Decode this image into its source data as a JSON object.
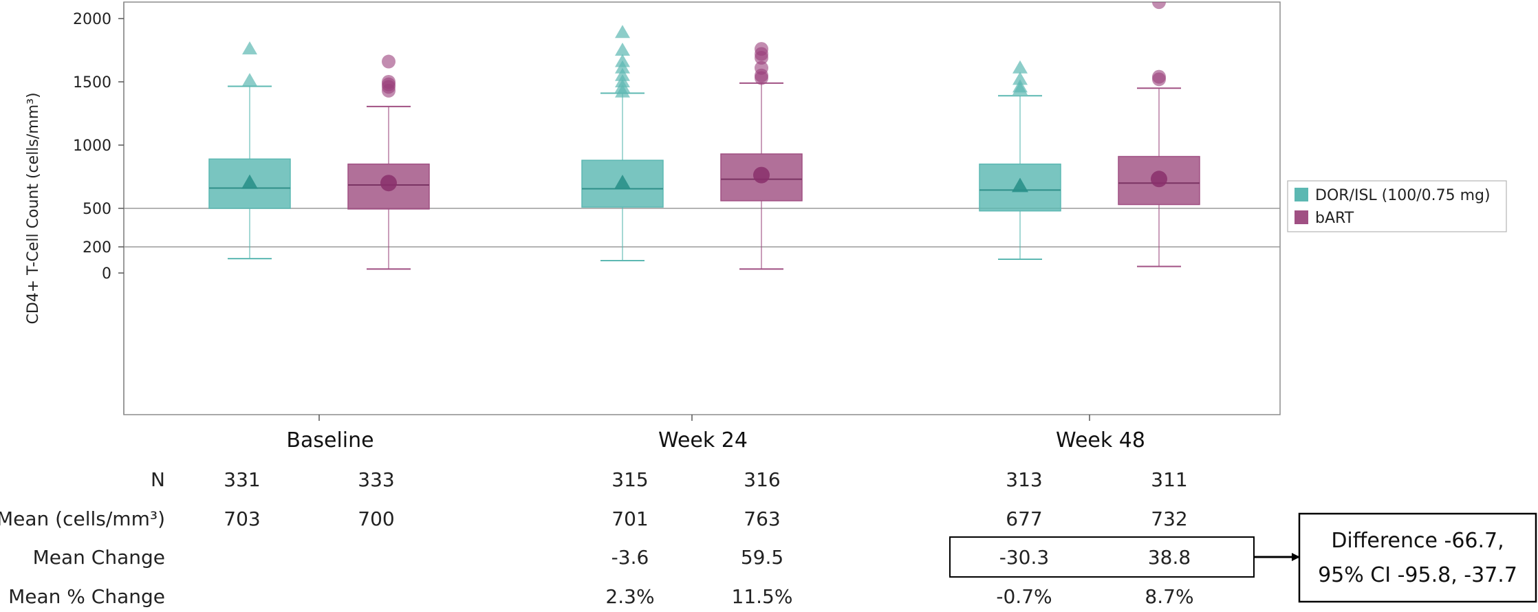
{
  "chart_data": {
    "type": "box",
    "ylabel": "CD4+ T-Cell Count (cells/mm³)",
    "yticks": [
      0,
      200,
      500,
      1000,
      1500,
      2000
    ],
    "categories": [
      "Baseline",
      "Week 24",
      "Week 48"
    ],
    "reference_lines": [
      200,
      500
    ],
    "colors": {
      "DOR/ISL (100/0.75 mg)": "#5cb8b2",
      "bART": "#a05083"
    },
    "legend_position": "right",
    "series": [
      {
        "name": "DOR/ISL (100/0.75 mg)",
        "marker": "triangle",
        "boxes": [
          {
            "category": "Baseline",
            "whisker_low": 110,
            "q1": 500,
            "median": 660,
            "q3": 890,
            "whisker_high": 1465,
            "mean": 703,
            "outliers": [
              1510,
              1760
            ]
          },
          {
            "category": "Week 24",
            "whisker_low": 95,
            "q1": 510,
            "median": 655,
            "q3": 880,
            "whisker_high": 1410,
            "mean": 701,
            "outliers": [
              1420,
              1460,
              1500,
              1550,
              1610,
              1660,
              1750,
              1890
            ]
          },
          {
            "category": "Week 48",
            "whisker_low": 105,
            "q1": 480,
            "median": 645,
            "q3": 850,
            "whisker_high": 1390,
            "mean": 677,
            "outliers": [
              1440,
              1460,
              1520,
              1610
            ]
          }
        ]
      },
      {
        "name": "bART",
        "marker": "circle",
        "boxes": [
          {
            "category": "Baseline",
            "whisker_low": 30,
            "q1": 495,
            "median": 685,
            "q3": 850,
            "whisker_high": 1305,
            "mean": 700,
            "outliers": [
              1430,
              1460,
              1480,
              1500,
              1660
            ]
          },
          {
            "category": "Week 24",
            "whisker_low": 30,
            "q1": 560,
            "median": 730,
            "q3": 930,
            "whisker_high": 1490,
            "mean": 763,
            "outliers": [
              1530,
              1550,
              1610,
              1690,
              1720,
              1760
            ]
          },
          {
            "category": "Week 48",
            "whisker_low": 50,
            "q1": 530,
            "median": 700,
            "q3": 910,
            "whisker_high": 1450,
            "mean": 732,
            "outliers": [
              1520,
              1540,
              2130
            ]
          }
        ]
      }
    ]
  },
  "table": {
    "row_labels": [
      "N",
      "Mean (cells/mm³)",
      "Mean Change",
      "Mean % Change"
    ],
    "rows": [
      [
        "331",
        "333",
        "315",
        "316",
        "313",
        "311"
      ],
      [
        "703",
        "700",
        "701",
        "763",
        "677",
        "732"
      ],
      [
        "",
        "",
        "-3.6",
        "59.5",
        "-30.3",
        "38.8"
      ],
      [
        "",
        "",
        "2.3%",
        "11.5%",
        "-0.7%",
        "8.7%"
      ]
    ]
  },
  "difference_box": {
    "line1": "Difference -66.7,",
    "line2": "95% CI -95.8, -37.7"
  }
}
